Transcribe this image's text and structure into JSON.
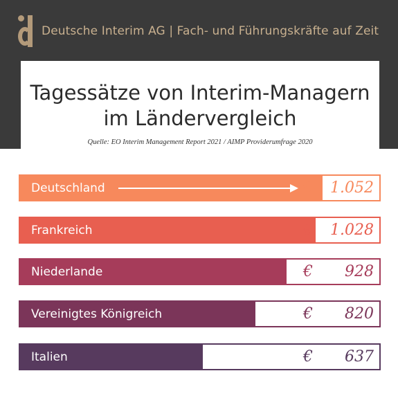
{
  "header": {
    "brand": "Deutsche Interim AG  |  Fach- und Führungskräfte auf Zeit"
  },
  "title_card": {
    "title_line1": "Tagessätze von Interim-Managern",
    "title_line2": "im Ländervergleich",
    "source": "Quelle: EO Interim Management Report 2021 / AIMP Providerumfrage 2020"
  },
  "chart_data": {
    "type": "bar",
    "orientation": "horizontal",
    "categories": [
      "Deutschland",
      "Frankreich",
      "Niederlande",
      "Vereinigtes Königreich",
      "Italien"
    ],
    "values": [
      1052,
      1028,
      928,
      820,
      637
    ],
    "value_labels": [
      "1.052",
      "1.028",
      "928",
      "820",
      "637"
    ],
    "currency_symbol": "€",
    "colors": [
      "#f7895c",
      "#e85f50",
      "#a63c5a",
      "#7b3559",
      "#573a5e"
    ],
    "highlight": "Deutschland",
    "xlim": [
      0,
      1250
    ]
  }
}
